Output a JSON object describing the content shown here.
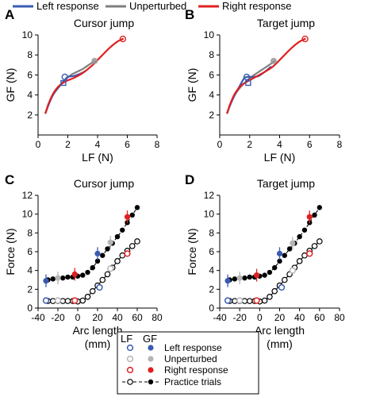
{
  "top_legend": [
    {
      "label": "Left response",
      "color": "#3a5bb0"
    },
    {
      "label": "Unperturbed",
      "color": "#7f7f7f"
    },
    {
      "label": "Right response",
      "color": "#e02020"
    }
  ],
  "bottom_legend": {
    "header_lf": "LF",
    "header_gf": "GF",
    "rows": [
      {
        "label": "Left response",
        "color": "#3a5bb0"
      },
      {
        "label": "Unperturbed",
        "color": "#b5b5b5"
      },
      {
        "label": "Right response",
        "color": "#e02020"
      },
      {
        "label": "Practice trials",
        "color": "#000000"
      }
    ]
  },
  "chart_data": [
    {
      "panel": "A",
      "title": "Cursor jump",
      "type": "line",
      "xlabel": "LF (N)",
      "ylabel": "GF (N)",
      "xlim": [
        0,
        8
      ],
      "ylim": [
        0,
        10
      ],
      "xticks": [
        0,
        2,
        4,
        6,
        8
      ],
      "yticks": [
        2,
        4,
        6,
        8,
        10
      ],
      "series": [
        {
          "name": "Unperturbed",
          "color": "#7f7f7f",
          "x": [
            0.5,
            0.7,
            1.0,
            1.4,
            1.8,
            2.2,
            2.6,
            3.0,
            3.4,
            3.8
          ],
          "y": [
            2.2,
            3.0,
            4.0,
            4.8,
            5.5,
            6.0,
            6.3,
            6.6,
            7.0,
            7.4
          ]
        },
        {
          "name": "Left response",
          "color": "#3a5bb0",
          "x": [
            0.5,
            0.7,
            1.0,
            1.4,
            1.8,
            2.0,
            2.4,
            2.8,
            3.2
          ],
          "y": [
            2.2,
            3.0,
            4.0,
            4.8,
            5.5,
            5.8,
            5.9,
            6.1,
            6.4
          ]
        },
        {
          "name": "Right response",
          "color": "#e02020",
          "x": [
            0.5,
            0.7,
            1.0,
            1.4,
            1.9,
            2.4,
            3.0,
            3.6,
            4.2,
            4.8,
            5.3,
            5.7
          ],
          "y": [
            2.2,
            3.1,
            4.1,
            4.9,
            5.4,
            5.7,
            6.2,
            6.9,
            7.8,
            8.7,
            9.3,
            9.6
          ]
        }
      ],
      "markers": [
        {
          "x": 1.8,
          "y": 5.8,
          "color": "#3a5bb0",
          "shape": "circle"
        },
        {
          "x": 1.7,
          "y": 5.2,
          "color": "#3a5bb0",
          "shape": "square"
        },
        {
          "x": 3.8,
          "y": 7.4,
          "color": "#999999",
          "shape": "diamond"
        },
        {
          "x": 5.7,
          "y": 9.6,
          "color": "#e02020",
          "shape": "circle"
        }
      ]
    },
    {
      "panel": "B",
      "title": "Target jump",
      "type": "line",
      "xlabel": "LF (N)",
      "ylabel": "GF (N)",
      "xlim": [
        0,
        8
      ],
      "ylim": [
        0,
        10
      ],
      "xticks": [
        0,
        2,
        4,
        6,
        8
      ],
      "yticks": [
        2,
        4,
        6,
        8,
        10
      ],
      "series": [
        {
          "name": "Unperturbed",
          "color": "#7f7f7f",
          "x": [
            0.5,
            0.7,
            1.0,
            1.4,
            1.8,
            2.2,
            2.6,
            3.0,
            3.4,
            3.7
          ],
          "y": [
            2.2,
            3.0,
            4.0,
            4.8,
            5.4,
            5.9,
            6.3,
            6.7,
            7.1,
            7.4
          ]
        },
        {
          "name": "Left response",
          "color": "#3a5bb0",
          "x": [
            0.5,
            0.7,
            1.0,
            1.3,
            1.6,
            1.8,
            2.2,
            2.6,
            3.0,
            3.4
          ],
          "y": [
            2.2,
            3.0,
            4.0,
            4.8,
            5.6,
            5.8,
            5.8,
            5.9,
            6.3,
            6.8
          ]
        },
        {
          "name": "Right response",
          "color": "#e02020",
          "x": [
            0.5,
            0.7,
            1.0,
            1.4,
            1.9,
            2.4,
            3.0,
            3.6,
            4.2,
            4.8,
            5.3,
            5.7
          ],
          "y": [
            2.2,
            3.1,
            4.1,
            4.9,
            5.4,
            5.8,
            6.3,
            6.9,
            7.8,
            8.7,
            9.3,
            9.6
          ]
        }
      ],
      "markers": [
        {
          "x": 1.8,
          "y": 5.8,
          "color": "#3a5bb0",
          "shape": "circle"
        },
        {
          "x": 1.9,
          "y": 5.2,
          "color": "#3a5bb0",
          "shape": "square"
        },
        {
          "x": 3.6,
          "y": 7.4,
          "color": "#999999",
          "shape": "diamond"
        },
        {
          "x": 5.7,
          "y": 9.6,
          "color": "#e02020",
          "shape": "circle"
        }
      ]
    },
    {
      "panel": "C",
      "title": "Cursor jump",
      "type": "scatter",
      "xlabel": "Arc length\n(mm)",
      "ylabel": "Force (N)",
      "xlim": [
        -40,
        80
      ],
      "ylim": [
        0,
        12
      ],
      "xticks": [
        -40,
        -20,
        0,
        20,
        40,
        60,
        80
      ],
      "yticks": [
        0,
        2,
        4,
        6,
        8,
        10,
        12
      ],
      "series": [
        {
          "name": "Practice trials GF",
          "color": "#000000",
          "dashed": true,
          "filled": true,
          "x": [
            -30,
            -25,
            -20,
            -15,
            -10,
            -5,
            0,
            5,
            10,
            15,
            20,
            25,
            30,
            35,
            40,
            45,
            50,
            55,
            60
          ],
          "y": [
            3.0,
            3.1,
            3.2,
            3.2,
            3.3,
            3.3,
            3.4,
            3.5,
            3.8,
            4.3,
            5.0,
            5.6,
            6.3,
            6.9,
            7.6,
            8.3,
            9.1,
            9.9,
            10.7
          ]
        },
        {
          "name": "Practice trials LF",
          "color": "#000000",
          "dashed": false,
          "filled": false,
          "x": [
            -30,
            -25,
            -20,
            -15,
            -10,
            -5,
            0,
            5,
            10,
            15,
            20,
            25,
            30,
            35,
            40,
            45,
            50,
            55,
            60
          ],
          "y": [
            0.75,
            0.75,
            0.75,
            0.75,
            0.75,
            0.75,
            0.7,
            0.8,
            1.2,
            1.8,
            2.4,
            3.0,
            3.6,
            4.3,
            5.0,
            5.6,
            6.1,
            6.6,
            7.1
          ]
        }
      ],
      "markers": [
        {
          "x": -32,
          "y": 2.9,
          "color": "#3a5bb0",
          "filled": true
        },
        {
          "x": -32,
          "y": 0.8,
          "color": "#3a5bb0",
          "filled": false
        },
        {
          "x": 20,
          "y": 5.8,
          "color": "#3a5bb0",
          "filled": true
        },
        {
          "x": 22,
          "y": 2.2,
          "color": "#3a5bb0",
          "filled": false
        },
        {
          "x": -20,
          "y": 3.2,
          "color": "#b5b5b5",
          "filled": true
        },
        {
          "x": -20,
          "y": 0.8,
          "color": "#b5b5b5",
          "filled": false
        },
        {
          "x": 33,
          "y": 7.0,
          "color": "#b5b5b5",
          "filled": true
        },
        {
          "x": 33,
          "y": 4.2,
          "color": "#b5b5b5",
          "filled": false
        },
        {
          "x": -3,
          "y": 3.6,
          "color": "#e02020",
          "filled": true
        },
        {
          "x": -3,
          "y": 0.8,
          "color": "#e02020",
          "filled": false
        },
        {
          "x": 50,
          "y": 9.7,
          "color": "#e02020",
          "filled": true
        },
        {
          "x": 50,
          "y": 5.8,
          "color": "#e02020",
          "filled": false
        }
      ]
    },
    {
      "panel": "D",
      "title": "Target jump",
      "type": "scatter",
      "xlabel": "Arc length\n(mm)",
      "ylabel": "Force (N)",
      "xlim": [
        -40,
        80
      ],
      "ylim": [
        0,
        12
      ],
      "xticks": [
        -40,
        -20,
        0,
        20,
        40,
        60,
        80
      ],
      "yticks": [
        0,
        2,
        4,
        6,
        8,
        10,
        12
      ],
      "series": [
        {
          "name": "Practice trials GF",
          "color": "#000000",
          "dashed": true,
          "filled": true,
          "x": [
            -30,
            -25,
            -20,
            -15,
            -10,
            -5,
            0,
            5,
            10,
            15,
            20,
            25,
            30,
            35,
            40,
            45,
            50,
            55,
            60
          ],
          "y": [
            3.0,
            3.1,
            3.2,
            3.2,
            3.3,
            3.3,
            3.4,
            3.5,
            3.8,
            4.3,
            5.0,
            5.6,
            6.3,
            6.9,
            7.6,
            8.3,
            9.1,
            9.9,
            10.7
          ]
        },
        {
          "name": "Practice trials LF",
          "color": "#000000",
          "dashed": false,
          "filled": false,
          "x": [
            -30,
            -25,
            -20,
            -15,
            -10,
            -5,
            0,
            5,
            10,
            15,
            20,
            25,
            30,
            35,
            40,
            45,
            50,
            55,
            60
          ],
          "y": [
            0.75,
            0.75,
            0.75,
            0.75,
            0.75,
            0.75,
            0.7,
            0.8,
            1.2,
            1.8,
            2.4,
            3.0,
            3.6,
            4.3,
            5.0,
            5.6,
            6.1,
            6.6,
            7.1
          ]
        }
      ],
      "markers": [
        {
          "x": -32,
          "y": 2.9,
          "color": "#3a5bb0",
          "filled": true
        },
        {
          "x": -32,
          "y": 0.8,
          "color": "#3a5bb0",
          "filled": false
        },
        {
          "x": 20,
          "y": 5.8,
          "color": "#3a5bb0",
          "filled": true
        },
        {
          "x": 22,
          "y": 2.2,
          "color": "#3a5bb0",
          "filled": false
        },
        {
          "x": -20,
          "y": 3.2,
          "color": "#b5b5b5",
          "filled": true
        },
        {
          "x": -20,
          "y": 0.8,
          "color": "#b5b5b5",
          "filled": false
        },
        {
          "x": 33,
          "y": 6.9,
          "color": "#b5b5b5",
          "filled": true
        },
        {
          "x": 33,
          "y": 4.0,
          "color": "#b5b5b5",
          "filled": false
        },
        {
          "x": -3,
          "y": 3.5,
          "color": "#e02020",
          "filled": true
        },
        {
          "x": -3,
          "y": 0.8,
          "color": "#e02020",
          "filled": false
        },
        {
          "x": 50,
          "y": 9.7,
          "color": "#e02020",
          "filled": true
        },
        {
          "x": 50,
          "y": 5.8,
          "color": "#e02020",
          "filled": false
        }
      ]
    }
  ]
}
